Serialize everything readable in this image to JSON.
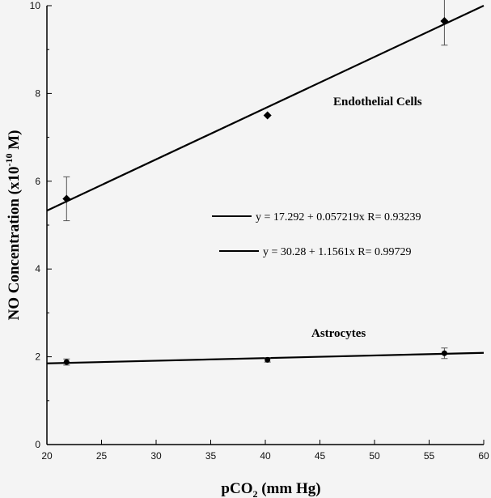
{
  "chart_data": {
    "type": "scatter",
    "xlabel_main": "pCO",
    "xlabel_sub": "2",
    "xlabel_rest": " (mm Hg)",
    "ylabel_main": "NO Concentration (x10",
    "ylabel_sup": "-10",
    "ylabel_rest": " M)",
    "xlim": [
      20,
      60
    ],
    "ylim": [
      0,
      10
    ],
    "x_ticks": [
      20,
      25,
      30,
      35,
      40,
      45,
      50,
      55,
      60
    ],
    "y_ticks": [
      0,
      2,
      4,
      6,
      8,
      10
    ],
    "series": [
      {
        "name": "Endothelial Cells",
        "marker": "diamond",
        "points": [
          {
            "x": 21.8,
            "y": 5.6,
            "err": 0.5
          },
          {
            "x": 40.2,
            "y": 7.5,
            "err": 0.0
          },
          {
            "x": 56.4,
            "y": 9.65,
            "err": 0.55
          }
        ],
        "fit": {
          "y_at_xmin": 5.33,
          "y_at_xmax": 10.0
        }
      },
      {
        "name": "Astrocytes",
        "marker": "circle",
        "points": [
          {
            "x": 21.8,
            "y": 1.88,
            "err": 0.07
          },
          {
            "x": 40.2,
            "y": 1.93,
            "err": 0.05
          },
          {
            "x": 56.4,
            "y": 2.08,
            "err": 0.12
          }
        ],
        "fit": {
          "y_at_xmin": 1.85,
          "y_at_xmax": 2.09
        }
      }
    ],
    "equations": [
      "y = 17.292 + 0.057219x R= 0.93239",
      "y = 30.28 + 1.1561x R= 0.99729"
    ],
    "colors": {
      "line": "#000000",
      "background": "#f4f4f4"
    }
  }
}
